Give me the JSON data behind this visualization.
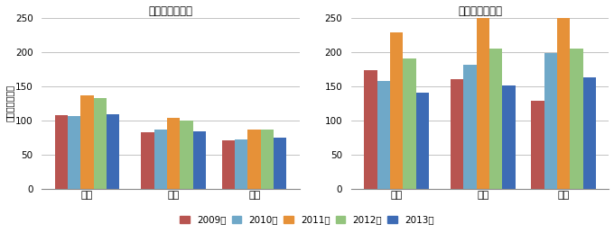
{
  "left_title": "一般炭輸入価格",
  "right_title": "原料炭輸入価格",
  "ylabel": "（ドル／トン）",
  "categories": [
    "日本",
    "韓国",
    "米国"
  ],
  "years": [
    "2009年",
    "2010年",
    "2011年",
    "2012年",
    "2013年"
  ],
  "colors": [
    "#b85450",
    "#6fa8c8",
    "#e69138",
    "#93c47d",
    "#3d6bb5"
  ],
  "left_data": [
    [
      108,
      106,
      136,
      132,
      109
    ],
    [
      82,
      86,
      104,
      100,
      84
    ],
    [
      71,
      72,
      87,
      86,
      75
    ]
  ],
  "right_data": [
    [
      173,
      157,
      228,
      191,
      140
    ],
    [
      160,
      181,
      250,
      205,
      151
    ],
    [
      128,
      198,
      250,
      205,
      163
    ]
  ],
  "ylim": [
    0,
    250
  ],
  "yticks": [
    0,
    50,
    100,
    150,
    200,
    250
  ],
  "background_color": "#ffffff"
}
